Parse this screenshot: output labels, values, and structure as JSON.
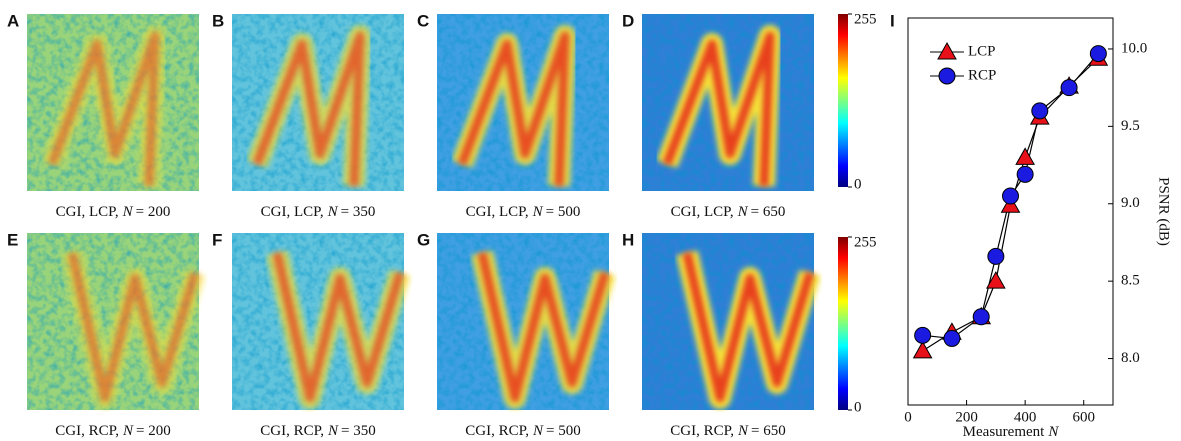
{
  "panels": [
    {
      "label": "A",
      "caption": {
        "mode": "CGI, LCP,",
        "symbol": "N",
        "value": "= 200"
      }
    },
    {
      "label": "B",
      "caption": {
        "mode": "CGI, LCP,",
        "symbol": "N",
        "value": "= 350"
      }
    },
    {
      "label": "C",
      "caption": {
        "mode": "CGI, LCP,",
        "symbol": "N",
        "value": "= 500"
      }
    },
    {
      "label": "D",
      "caption": {
        "mode": "CGI, LCP,",
        "symbol": "N",
        "value": "= 650"
      }
    },
    {
      "label": "E",
      "caption": {
        "mode": "CGI, RCP,",
        "symbol": "N",
        "value": "= 200"
      }
    },
    {
      "label": "F",
      "caption": {
        "mode": "CGI, RCP,",
        "symbol": "N",
        "value": "= 350"
      }
    },
    {
      "label": "G",
      "caption": {
        "mode": "CGI, RCP,",
        "symbol": "N",
        "value": "= 500"
      }
    },
    {
      "label": "H",
      "caption": {
        "mode": "CGI, RCP,",
        "symbol": "N",
        "value": "= 650"
      }
    }
  ],
  "colorbars": [
    {
      "ticks": [
        0,
        255
      ]
    },
    {
      "ticks": [
        0,
        255
      ]
    }
  ],
  "chart_data": {
    "type": "line",
    "panel_label": "I",
    "xlabel": {
      "text": "Measurement",
      "symbol": "N"
    },
    "ylabel": "PSNR (dB)",
    "x": [
      50,
      150,
      250,
      300,
      350,
      400,
      450,
      550,
      650
    ],
    "series": [
      {
        "name": "LCP",
        "color": "#e8111a",
        "marker": "triangle",
        "values": [
          8.05,
          8.17,
          8.27,
          8.5,
          8.99,
          9.3,
          9.56,
          9.76,
          9.94
        ]
      },
      {
        "name": "RCP",
        "color": "#1a1ae0",
        "marker": "circle",
        "values": [
          8.15,
          8.13,
          8.27,
          8.66,
          9.05,
          9.19,
          9.6,
          9.75,
          9.97
        ]
      }
    ],
    "xlim": [
      0,
      700
    ],
    "xticks": [
      0,
      200,
      400,
      600
    ],
    "ylim": [
      7.7,
      10.2
    ],
    "yticks": [
      {
        "value": 8,
        "label": "8.0"
      },
      8.5,
      {
        "value": 9,
        "label": "9.0"
      },
      9.5,
      {
        "value": 10,
        "label": "10.0"
      }
    ],
    "y_axis_side": "right",
    "legend": "upper left"
  }
}
